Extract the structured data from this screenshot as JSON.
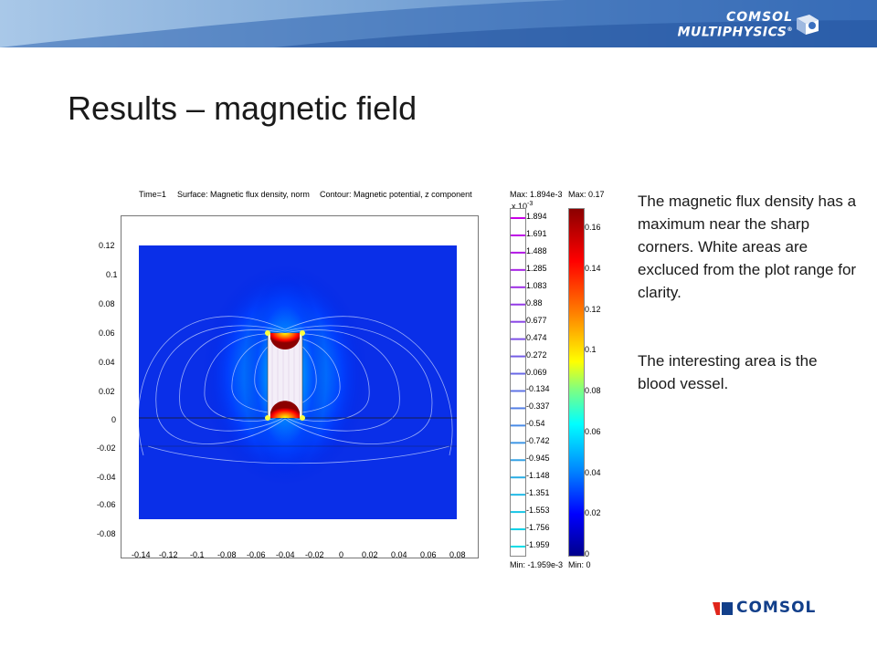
{
  "header": {
    "logo_line1": "COMSOL",
    "logo_line2": "MULTIPHYSICS",
    "logo_reg": "®"
  },
  "slide": {
    "title": "Results – magnetic field"
  },
  "plot": {
    "caption_time": "Time=1",
    "caption_surface": "Surface: Magnetic flux density, norm",
    "caption_contour": "Contour: Magnetic potential, z component",
    "max_contour": "Max: 1.894e-3",
    "max_surface": "Max: 0.17",
    "min_contour": "Min: -1.959e-3",
    "min_surface": "Min: 0",
    "contour_scale_exp": "x 10",
    "contour_scale_pow": "-3",
    "y_ticks": [
      "0.12",
      "0.1",
      "0.08",
      "0.06",
      "0.04",
      "0.02",
      "0",
      "-0.02",
      "-0.04",
      "-0.06",
      "-0.08"
    ],
    "x_ticks": [
      "-0.14",
      "-0.12",
      "-0.1",
      "-0.08",
      "-0.06",
      "-0.04",
      "-0.02",
      "0",
      "0.02",
      "0.04",
      "0.06",
      "0.08"
    ],
    "contour_ticks": [
      "1.894",
      "1.691",
      "1.488",
      "1.285",
      "1.083",
      "0.88",
      "0.677",
      "0.474",
      "0.272",
      "0.069",
      "-0.134",
      "-0.337",
      "-0.54",
      "-0.742",
      "-0.945",
      "-1.148",
      "-1.351",
      "-1.553",
      "-1.756",
      "-1.959"
    ],
    "surface_ticks": [
      "0.16",
      "0.14",
      "0.12",
      "0.1",
      "0.08",
      "0.06",
      "0.04",
      "0.02",
      "0"
    ]
  },
  "chart_data": {
    "type": "heatmap",
    "title": "Time=1   Surface: Magnetic flux density, norm   Contour: Magnetic potential, z component",
    "xlim": [
      -0.14,
      0.08
    ],
    "ylim": [
      -0.08,
      0.12
    ],
    "x_ticks": [
      -0.14,
      -0.12,
      -0.1,
      -0.08,
      -0.06,
      -0.04,
      -0.02,
      0,
      0.02,
      0.04,
      0.06,
      0.08
    ],
    "y_ticks": [
      0.12,
      0.1,
      0.08,
      0.06,
      0.04,
      0.02,
      0,
      -0.02,
      -0.04,
      -0.06,
      -0.08
    ],
    "surface": {
      "name": "Magnetic flux density, norm",
      "max": 0.17,
      "min": 0,
      "colorbar_ticks": [
        0.16,
        0.14,
        0.12,
        0.1,
        0.08,
        0.06,
        0.04,
        0.02,
        0
      ]
    },
    "contour": {
      "name": "Magnetic potential, z component",
      "max": 0.001894,
      "min": -0.001959,
      "scale": "x 10^-3",
      "levels": [
        1.894,
        1.691,
        1.488,
        1.285,
        1.083,
        0.88,
        0.677,
        0.474,
        0.272,
        0.069,
        -0.134,
        -0.337,
        -0.54,
        -0.742,
        -0.945,
        -1.148,
        -1.351,
        -1.553,
        -1.756,
        -1.959
      ]
    }
  },
  "notes": {
    "paragraph1": "The magnetic flux density has a maximum near the sharp corners. White areas are excluced from the plot range for clarity.",
    "paragraph2": "The interesting area is the blood vessel."
  },
  "footer": {
    "logo_text": "COMSOL"
  }
}
